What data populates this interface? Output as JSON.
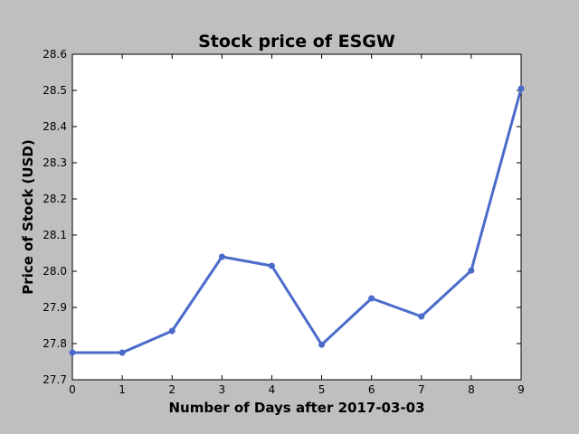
{
  "chart_data": {
    "type": "line",
    "title": "Stock price of ESGW",
    "xlabel": "Number of Days after 2017-03-03",
    "ylabel": "Price of Stock (USD)",
    "x": [
      0,
      1,
      2,
      3,
      4,
      5,
      6,
      7,
      8,
      9
    ],
    "series": [
      {
        "values": [
          27.775,
          27.775,
          27.835,
          28.04,
          28.015,
          27.797,
          27.925,
          27.875,
          28.002,
          28.505
        ]
      }
    ],
    "xlim": [
      0,
      9
    ],
    "ylim": [
      27.7,
      28.6
    ],
    "xticks": [
      0,
      1,
      2,
      3,
      4,
      5,
      6,
      7,
      8,
      9
    ],
    "yticks": [
      27.7,
      27.8,
      27.9,
      28.0,
      28.1,
      28.2,
      28.3,
      28.4,
      28.5,
      28.6
    ],
    "ytick_labels": [
      "27.7",
      "27.8",
      "27.9",
      "28.0",
      "28.1",
      "28.2",
      "28.3",
      "28.4",
      "28.5",
      "28.6"
    ],
    "grid": false,
    "line_color": "#4a6bc9",
    "background": "#bfbfbf",
    "plot_background": "#ffffff"
  }
}
